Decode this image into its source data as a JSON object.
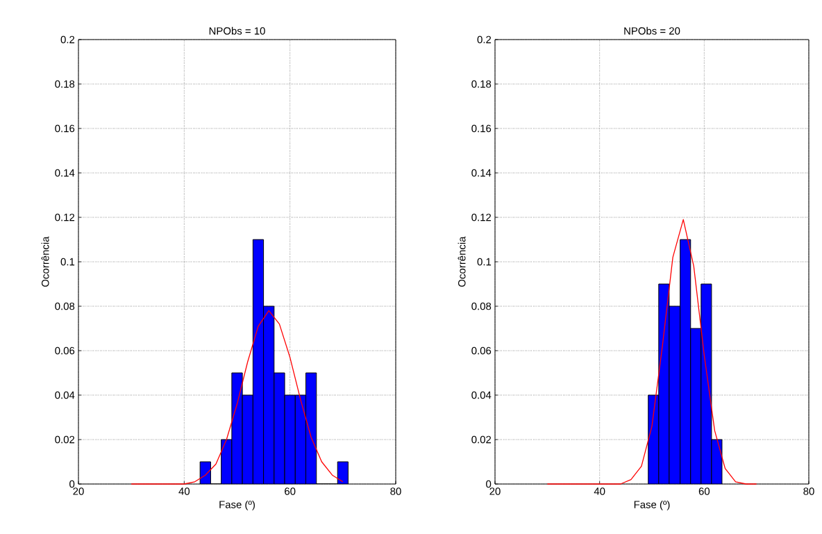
{
  "chart_data": [
    {
      "type": "histogram",
      "title": "NPObs = 10",
      "xlabel": "Fase (º)",
      "ylabel": "Ocorrência",
      "xlim": [
        20,
        80
      ],
      "xticks": [
        20,
        40,
        60,
        80
      ],
      "ylim": [
        0,
        0.2
      ],
      "yticks": [
        0,
        0.02,
        0.04,
        0.06,
        0.08,
        0.1,
        0.12,
        0.14,
        0.16,
        0.18,
        0.2
      ],
      "grid": true,
      "series": [
        {
          "color": "#0000ff",
          "bins": [
            43,
            45,
            47,
            49,
            51,
            53,
            55,
            57,
            59,
            61,
            63,
            65,
            67,
            69,
            71
          ],
          "values": [
            0.01,
            0,
            0.02,
            0.05,
            0.04,
            0.11,
            0.08,
            0.05,
            0.04,
            0.04,
            0.05,
            0,
            0,
            0.01
          ]
        },
        {
          "type": "line",
          "color": "#ff0000",
          "x": [
            30,
            32,
            34,
            36,
            38,
            40,
            42,
            44,
            46,
            48,
            50,
            52,
            54,
            56,
            58,
            60,
            62,
            64,
            66,
            68,
            70
          ],
          "values": [
            0,
            0,
            0,
            0,
            0,
            0,
            0.001,
            0.004,
            0.009,
            0.02,
            0.036,
            0.055,
            0.071,
            0.078,
            0.072,
            0.057,
            0.038,
            0.021,
            0.01,
            0.004,
            0.001
          ]
        }
      ]
    },
    {
      "type": "histogram",
      "title": "NPObs = 20",
      "xlabel": "Fase (º)",
      "ylabel": "Ocorrência",
      "xlim": [
        20,
        80
      ],
      "xticks": [
        20,
        40,
        60,
        80
      ],
      "ylim": [
        0,
        0.2
      ],
      "yticks": [
        0,
        0.02,
        0.04,
        0.06,
        0.08,
        0.1,
        0.12,
        0.14,
        0.16,
        0.18,
        0.2
      ],
      "grid": true,
      "series": [
        {
          "color": "#0000ff",
          "bins": [
            49.3,
            51.3,
            53.3,
            55.4,
            57.4,
            59.4,
            61.4,
            63.4
          ],
          "values": [
            0.04,
            0.09,
            0.08,
            0.11,
            0.07,
            0.09,
            0.02
          ]
        },
        {
          "type": "line",
          "color": "#ff0000",
          "x": [
            30,
            34,
            38,
            42,
            44,
            46,
            48,
            50,
            52,
            54,
            56,
            58,
            60,
            62,
            64,
            66,
            68,
            70
          ],
          "values": [
            0,
            0,
            0,
            0,
            0,
            0.002,
            0.008,
            0.026,
            0.062,
            0.102,
            0.119,
            0.098,
            0.058,
            0.024,
            0.007,
            0.001,
            0,
            0
          ]
        }
      ]
    }
  ]
}
